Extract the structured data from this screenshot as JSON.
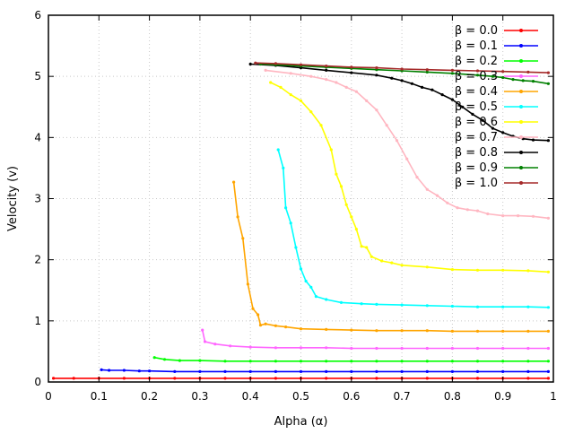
{
  "chart_data": {
    "type": "line",
    "title": "",
    "xlabel": "Alpha (α)",
    "ylabel": "Velocity (v)",
    "xlim": [
      0,
      1
    ],
    "ylim": [
      0,
      6
    ],
    "xticks": [
      "0",
      "0.1",
      "0.2",
      "0.3",
      "0.4",
      "0.5",
      "0.6",
      "0.7",
      "0.8",
      "0.9",
      "1"
    ],
    "yticks": [
      "0",
      "1",
      "2",
      "3",
      "4",
      "5",
      "6"
    ],
    "grid": true,
    "legend_position": "top-right",
    "series": [
      {
        "name": "β = 0.0",
        "color": "#ff0000",
        "points": [
          [
            0.01,
            0.06
          ],
          [
            0.05,
            0.06
          ],
          [
            0.1,
            0.06
          ],
          [
            0.15,
            0.06
          ],
          [
            0.2,
            0.06
          ],
          [
            0.25,
            0.06
          ],
          [
            0.3,
            0.06
          ],
          [
            0.35,
            0.06
          ],
          [
            0.4,
            0.06
          ],
          [
            0.45,
            0.06
          ],
          [
            0.5,
            0.06
          ],
          [
            0.55,
            0.06
          ],
          [
            0.6,
            0.06
          ],
          [
            0.65,
            0.06
          ],
          [
            0.7,
            0.06
          ],
          [
            0.75,
            0.06
          ],
          [
            0.8,
            0.06
          ],
          [
            0.85,
            0.06
          ],
          [
            0.9,
            0.06
          ],
          [
            0.95,
            0.06
          ],
          [
            0.99,
            0.06
          ]
        ]
      },
      {
        "name": "β = 0.1",
        "color": "#0000ff",
        "points": [
          [
            0.105,
            0.2
          ],
          [
            0.12,
            0.19
          ],
          [
            0.15,
            0.19
          ],
          [
            0.18,
            0.18
          ],
          [
            0.2,
            0.18
          ],
          [
            0.25,
            0.17
          ],
          [
            0.3,
            0.17
          ],
          [
            0.35,
            0.17
          ],
          [
            0.4,
            0.17
          ],
          [
            0.45,
            0.17
          ],
          [
            0.5,
            0.17
          ],
          [
            0.55,
            0.17
          ],
          [
            0.6,
            0.17
          ],
          [
            0.65,
            0.17
          ],
          [
            0.7,
            0.17
          ],
          [
            0.75,
            0.17
          ],
          [
            0.8,
            0.17
          ],
          [
            0.85,
            0.17
          ],
          [
            0.9,
            0.17
          ],
          [
            0.95,
            0.17
          ],
          [
            0.99,
            0.17
          ]
        ]
      },
      {
        "name": "β = 0.2",
        "color": "#00ff00",
        "points": [
          [
            0.21,
            0.4
          ],
          [
            0.23,
            0.37
          ],
          [
            0.26,
            0.35
          ],
          [
            0.3,
            0.35
          ],
          [
            0.35,
            0.34
          ],
          [
            0.4,
            0.34
          ],
          [
            0.45,
            0.34
          ],
          [
            0.5,
            0.34
          ],
          [
            0.55,
            0.34
          ],
          [
            0.6,
            0.34
          ],
          [
            0.65,
            0.34
          ],
          [
            0.7,
            0.34
          ],
          [
            0.75,
            0.34
          ],
          [
            0.8,
            0.34
          ],
          [
            0.85,
            0.34
          ],
          [
            0.9,
            0.34
          ],
          [
            0.95,
            0.34
          ],
          [
            0.99,
            0.34
          ]
        ]
      },
      {
        "name": "β = 0.3",
        "color": "#ff66ff",
        "points": [
          [
            0.305,
            0.85
          ],
          [
            0.31,
            0.66
          ],
          [
            0.33,
            0.62
          ],
          [
            0.36,
            0.59
          ],
          [
            0.4,
            0.57
          ],
          [
            0.45,
            0.56
          ],
          [
            0.5,
            0.56
          ],
          [
            0.55,
            0.56
          ],
          [
            0.6,
            0.55
          ],
          [
            0.65,
            0.55
          ],
          [
            0.7,
            0.55
          ],
          [
            0.75,
            0.55
          ],
          [
            0.8,
            0.55
          ],
          [
            0.85,
            0.55
          ],
          [
            0.9,
            0.55
          ],
          [
            0.95,
            0.55
          ],
          [
            0.99,
            0.55
          ]
        ]
      },
      {
        "name": "β = 0.4",
        "color": "#ffa500",
        "points": [
          [
            0.367,
            3.27
          ],
          [
            0.375,
            2.7
          ],
          [
            0.385,
            2.35
          ],
          [
            0.395,
            1.6
          ],
          [
            0.405,
            1.2
          ],
          [
            0.415,
            1.1
          ],
          [
            0.42,
            0.93
          ],
          [
            0.43,
            0.95
          ],
          [
            0.45,
            0.92
          ],
          [
            0.47,
            0.9
          ],
          [
            0.5,
            0.87
          ],
          [
            0.55,
            0.86
          ],
          [
            0.6,
            0.85
          ],
          [
            0.65,
            0.84
          ],
          [
            0.7,
            0.84
          ],
          [
            0.75,
            0.84
          ],
          [
            0.8,
            0.83
          ],
          [
            0.85,
            0.83
          ],
          [
            0.9,
            0.83
          ],
          [
            0.95,
            0.83
          ],
          [
            0.99,
            0.83
          ]
        ]
      },
      {
        "name": "β = 0.5",
        "color": "#00ffff",
        "points": [
          [
            0.455,
            3.8
          ],
          [
            0.465,
            3.5
          ],
          [
            0.47,
            2.85
          ],
          [
            0.48,
            2.6
          ],
          [
            0.49,
            2.2
          ],
          [
            0.5,
            1.85
          ],
          [
            0.51,
            1.65
          ],
          [
            0.52,
            1.55
          ],
          [
            0.53,
            1.4
          ],
          [
            0.55,
            1.35
          ],
          [
            0.58,
            1.3
          ],
          [
            0.62,
            1.28
          ],
          [
            0.65,
            1.27
          ],
          [
            0.7,
            1.26
          ],
          [
            0.75,
            1.25
          ],
          [
            0.8,
            1.24
          ],
          [
            0.85,
            1.23
          ],
          [
            0.9,
            1.23
          ],
          [
            0.95,
            1.23
          ],
          [
            0.99,
            1.22
          ]
        ]
      },
      {
        "name": "β = 0.6",
        "color": "#ffff00",
        "points": [
          [
            0.44,
            4.9
          ],
          [
            0.46,
            4.82
          ],
          [
            0.48,
            4.7
          ],
          [
            0.5,
            4.6
          ],
          [
            0.52,
            4.42
          ],
          [
            0.54,
            4.2
          ],
          [
            0.56,
            3.8
          ],
          [
            0.57,
            3.4
          ],
          [
            0.58,
            3.2
          ],
          [
            0.59,
            2.9
          ],
          [
            0.6,
            2.7
          ],
          [
            0.61,
            2.5
          ],
          [
            0.62,
            2.22
          ],
          [
            0.63,
            2.2
          ],
          [
            0.64,
            2.05
          ],
          [
            0.66,
            1.98
          ],
          [
            0.68,
            1.95
          ],
          [
            0.7,
            1.91
          ],
          [
            0.75,
            1.88
          ],
          [
            0.8,
            1.84
          ],
          [
            0.85,
            1.83
          ],
          [
            0.9,
            1.83
          ],
          [
            0.95,
            1.82
          ],
          [
            0.99,
            1.8
          ]
        ]
      },
      {
        "name": "β = 0.7",
        "color": "#ffb6c1",
        "points": [
          [
            0.43,
            5.1
          ],
          [
            0.48,
            5.05
          ],
          [
            0.52,
            5.0
          ],
          [
            0.55,
            4.95
          ],
          [
            0.57,
            4.9
          ],
          [
            0.59,
            4.82
          ],
          [
            0.61,
            4.75
          ],
          [
            0.63,
            4.6
          ],
          [
            0.65,
            4.45
          ],
          [
            0.67,
            4.2
          ],
          [
            0.69,
            3.95
          ],
          [
            0.71,
            3.65
          ],
          [
            0.73,
            3.35
          ],
          [
            0.75,
            3.15
          ],
          [
            0.77,
            3.05
          ],
          [
            0.79,
            2.93
          ],
          [
            0.81,
            2.85
          ],
          [
            0.83,
            2.82
          ],
          [
            0.85,
            2.8
          ],
          [
            0.87,
            2.75
          ],
          [
            0.9,
            2.72
          ],
          [
            0.93,
            2.72
          ],
          [
            0.96,
            2.71
          ],
          [
            0.99,
            2.68
          ]
        ]
      },
      {
        "name": "β = 0.8",
        "color": "#000000",
        "points": [
          [
            0.4,
            5.2
          ],
          [
            0.45,
            5.18
          ],
          [
            0.5,
            5.14
          ],
          [
            0.55,
            5.1
          ],
          [
            0.6,
            5.06
          ],
          [
            0.65,
            5.02
          ],
          [
            0.68,
            4.97
          ],
          [
            0.7,
            4.93
          ],
          [
            0.72,
            4.88
          ],
          [
            0.74,
            4.82
          ],
          [
            0.76,
            4.78
          ],
          [
            0.78,
            4.7
          ],
          [
            0.8,
            4.62
          ],
          [
            0.82,
            4.5
          ],
          [
            0.84,
            4.38
          ],
          [
            0.86,
            4.28
          ],
          [
            0.88,
            4.15
          ],
          [
            0.9,
            4.08
          ],
          [
            0.92,
            4.02
          ],
          [
            0.94,
            3.98
          ],
          [
            0.96,
            3.96
          ],
          [
            0.99,
            3.95
          ]
        ]
      },
      {
        "name": "β = 0.9",
        "color": "#008000",
        "points": [
          [
            0.42,
            5.2
          ],
          [
            0.45,
            5.19
          ],
          [
            0.5,
            5.17
          ],
          [
            0.55,
            5.15
          ],
          [
            0.6,
            5.13
          ],
          [
            0.65,
            5.11
          ],
          [
            0.7,
            5.09
          ],
          [
            0.75,
            5.07
          ],
          [
            0.8,
            5.05
          ],
          [
            0.85,
            5.02
          ],
          [
            0.88,
            5.0
          ],
          [
            0.9,
            4.98
          ],
          [
            0.92,
            4.95
          ],
          [
            0.94,
            4.93
          ],
          [
            0.96,
            4.92
          ],
          [
            0.99,
            4.88
          ]
        ]
      },
      {
        "name": "β = 1.0",
        "color": "#a52a2a",
        "points": [
          [
            0.41,
            5.22
          ],
          [
            0.45,
            5.21
          ],
          [
            0.5,
            5.19
          ],
          [
            0.55,
            5.17
          ],
          [
            0.6,
            5.15
          ],
          [
            0.65,
            5.14
          ],
          [
            0.7,
            5.12
          ],
          [
            0.75,
            5.11
          ],
          [
            0.8,
            5.1
          ],
          [
            0.85,
            5.09
          ],
          [
            0.9,
            5.08
          ],
          [
            0.95,
            5.07
          ],
          [
            0.99,
            5.06
          ]
        ]
      }
    ]
  }
}
